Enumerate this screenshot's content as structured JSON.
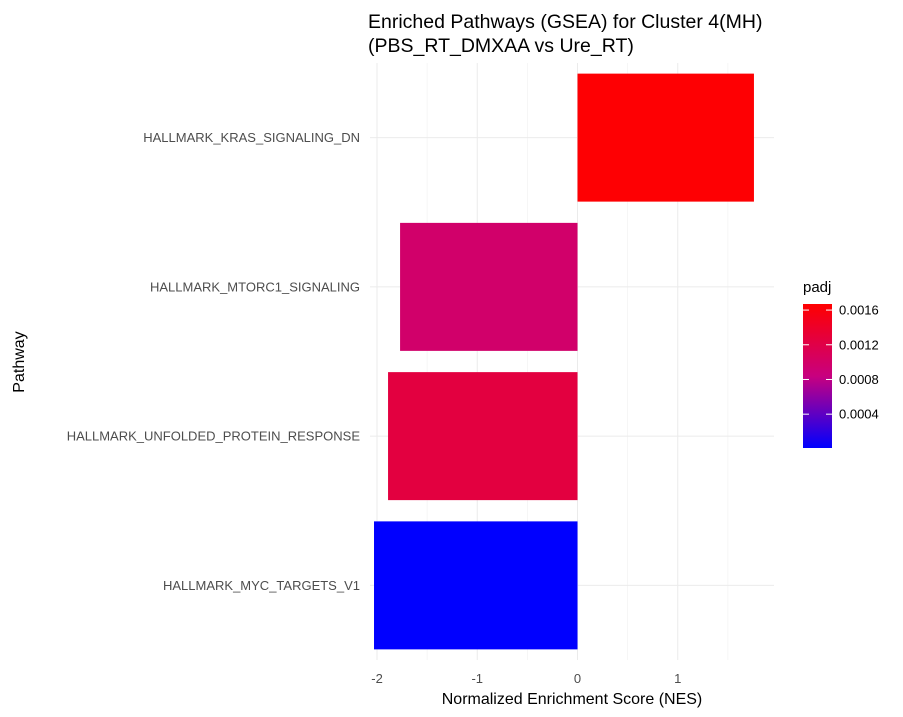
{
  "chart_data": {
    "type": "bar",
    "orientation": "horizontal",
    "title_lines": [
      "Enriched Pathways (GSEA) for Cluster 4(MH)",
      "(PBS_RT_DMXAA vs Ure_RT)"
    ],
    "xlabel": "Normalized Enrichment Score (NES)",
    "ylabel": "Pathway",
    "categories": [
      "HALLMARK_KRAS_SIGNALING_DN",
      "HALLMARK_MTORC1_SIGNALING",
      "HALLMARK_UNFOLDED_PROTEIN_RESPONSE",
      "HALLMARK_MYC_TARGETS_V1"
    ],
    "values": [
      1.76,
      -1.77,
      -1.89,
      -2.03
    ],
    "padj": [
      0.00165,
      0.00098,
      0.00125,
      1e-05
    ],
    "xlim": [
      -2.07,
      1.96
    ],
    "x_ticks": [
      {
        "value": -2,
        "label": "-2"
      },
      {
        "value": -1,
        "label": "-1"
      },
      {
        "value": 0,
        "label": "0"
      },
      {
        "value": 1,
        "label": "1"
      }
    ],
    "x_minor_ticks": [
      -1.5,
      -0.5,
      0.5,
      1.5
    ],
    "grid": true,
    "legend": {
      "title": "padj",
      "position": "right",
      "colormap": {
        "low": "#0000ff",
        "high": "#ff0000"
      },
      "range": [
        1e-05,
        0.00167
      ],
      "ticks": [
        {
          "value": 0.0004,
          "label": "0.0004"
        },
        {
          "value": 0.0008,
          "label": "0.0008"
        },
        {
          "value": 0.0012,
          "label": "0.0012"
        },
        {
          "value": 0.0016,
          "label": "0.0016"
        }
      ]
    }
  }
}
